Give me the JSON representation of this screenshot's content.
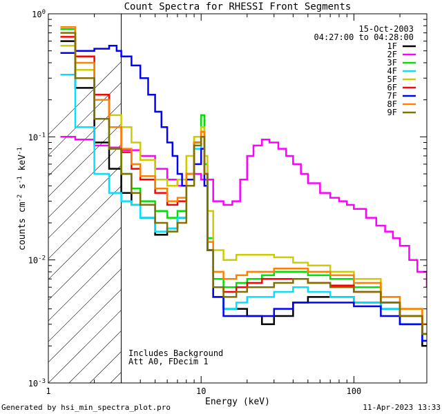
{
  "chart_data": {
    "type": "line",
    "title": "Count Spectra for RHESSI Front Segments",
    "xlabel": "Energy (keV)",
    "ylabel": "counts cm",
    "ylabel_sup1": "-2",
    "ylabel_mid": " s",
    "ylabel_sup2": "-1",
    "ylabel_tail": " keV",
    "ylabel_sup3": "-1",
    "xscale": "log",
    "yscale": "log",
    "xlim": [
      1,
      300
    ],
    "ylim": [
      0.001,
      1
    ],
    "x_ticks": [
      {
        "value": 1,
        "label": "1"
      },
      {
        "value": 10,
        "label": "10"
      },
      {
        "value": 100,
        "label": "100"
      }
    ],
    "y_ticks": [
      {
        "value": 1,
        "base": "10",
        "exp": "0"
      },
      {
        "value": 0.1,
        "base": "10",
        "exp": "-1"
      },
      {
        "value": 0.01,
        "base": "10",
        "exp": "-2"
      },
      {
        "value": 0.001,
        "base": "10",
        "exp": "-3"
      }
    ],
    "date": "15-Oct-2003",
    "time_range": "04:27:00 to 04:28:00",
    "annotations": [
      "Includes Background",
      "Att A0, FDecim 1"
    ],
    "hatched_region_xmax": 3,
    "legend_position": "top-right",
    "series": [
      {
        "name": "1F",
        "color": "#000000",
        "x": [
          1.2,
          1.5,
          2.0,
          2.5,
          3.0,
          3.5,
          4.0,
          5.0,
          6.0,
          7.0,
          8.0,
          9.0,
          10.0,
          10.5,
          11.0,
          12.0,
          14.0,
          17.0,
          20.0,
          25.0,
          30.0,
          40.0,
          50.0,
          70.0,
          100.0,
          150.0,
          200.0,
          280.0
        ],
        "y": [
          0.6,
          0.25,
          0.09,
          0.055,
          0.035,
          0.028,
          0.022,
          0.016,
          0.018,
          0.022,
          0.045,
          0.09,
          0.11,
          0.05,
          0.012,
          0.005,
          0.004,
          0.004,
          0.0035,
          0.003,
          0.0035,
          0.0045,
          0.005,
          0.005,
          0.0045,
          0.004,
          0.003,
          0.002
        ]
      },
      {
        "name": "2F",
        "color": "#ff00ff",
        "x": [
          1.2,
          1.5,
          2.0,
          2.5,
          3.0,
          4.0,
          5.0,
          6.0,
          7.0,
          8.0,
          9.0,
          10.0,
          12.0,
          14.0,
          16.0,
          18.0,
          20.0,
          22.0,
          25.0,
          28.0,
          32.0,
          36.0,
          40.0,
          45.0,
          50.0,
          60.0,
          70.0,
          80.0,
          90.0,
          100.0,
          120.0,
          140.0,
          160.0,
          180.0,
          200.0,
          230.0,
          260.0,
          300.0
        ],
        "y": [
          0.1,
          0.095,
          0.085,
          0.082,
          0.078,
          0.07,
          0.055,
          0.045,
          0.04,
          0.045,
          0.05,
          0.045,
          0.03,
          0.028,
          0.03,
          0.045,
          0.07,
          0.085,
          0.095,
          0.09,
          0.08,
          0.07,
          0.06,
          0.05,
          0.042,
          0.035,
          0.032,
          0.03,
          0.028,
          0.026,
          0.022,
          0.019,
          0.017,
          0.015,
          0.013,
          0.01,
          0.008,
          0.006
        ]
      },
      {
        "name": "3F",
        "color": "#00e000",
        "x": [
          1.2,
          1.5,
          2.0,
          2.5,
          3.0,
          3.5,
          4.0,
          5.0,
          6.0,
          7.0,
          8.0,
          9.0,
          10.0,
          10.5,
          11.0,
          12.0,
          14.0,
          17.0,
          20.0,
          25.0,
          30.0,
          40.0,
          50.0,
          70.0,
          100.0,
          150.0,
          200.0,
          280.0
        ],
        "y": [
          0.75,
          0.3,
          0.14,
          0.08,
          0.05,
          0.038,
          0.03,
          0.025,
          0.022,
          0.025,
          0.05,
          0.1,
          0.15,
          0.06,
          0.015,
          0.007,
          0.006,
          0.0065,
          0.007,
          0.0075,
          0.008,
          0.008,
          0.0075,
          0.007,
          0.006,
          0.0045,
          0.0035,
          0.0025
        ]
      },
      {
        "name": "4F",
        "color": "#00e0ff",
        "x": [
          1.2,
          1.5,
          2.0,
          2.5,
          3.0,
          3.5,
          4.0,
          5.0,
          6.0,
          7.0,
          8.0,
          9.0,
          10.0,
          10.5,
          11.0,
          12.0,
          14.0,
          17.0,
          20.0,
          25.0,
          30.0,
          40.0,
          50.0,
          70.0,
          100.0,
          150.0,
          200.0,
          280.0
        ],
        "y": [
          0.32,
          0.12,
          0.05,
          0.035,
          0.03,
          0.028,
          0.022,
          0.017,
          0.018,
          0.022,
          0.045,
          0.08,
          0.12,
          0.05,
          0.012,
          0.005,
          0.004,
          0.0045,
          0.005,
          0.005,
          0.0055,
          0.006,
          0.0055,
          0.005,
          0.0045,
          0.004,
          0.003,
          0.0022
        ]
      },
      {
        "name": "5F",
        "color": "#cccc00",
        "x": [
          1.2,
          1.5,
          2.0,
          2.5,
          3.0,
          3.5,
          4.0,
          5.0,
          6.0,
          7.0,
          8.0,
          9.0,
          10.0,
          10.5,
          11.0,
          12.0,
          14.0,
          17.0,
          20.0,
          25.0,
          30.0,
          40.0,
          50.0,
          70.0,
          100.0,
          150.0,
          200.0,
          280.0
        ],
        "y": [
          0.55,
          0.35,
          0.22,
          0.15,
          0.12,
          0.09,
          0.065,
          0.045,
          0.04,
          0.045,
          0.07,
          0.1,
          0.12,
          0.07,
          0.025,
          0.012,
          0.01,
          0.011,
          0.011,
          0.011,
          0.0105,
          0.0095,
          0.009,
          0.008,
          0.007,
          0.005,
          0.004,
          0.003
        ]
      },
      {
        "name": "6F",
        "color": "#ff0000",
        "x": [
          1.2,
          1.5,
          2.0,
          2.5,
          3.0,
          3.5,
          4.0,
          5.0,
          6.0,
          7.0,
          8.0,
          9.0,
          10.0,
          10.5,
          11.0,
          12.0,
          14.0,
          17.0,
          20.0,
          25.0,
          30.0,
          40.0,
          50.0,
          70.0,
          100.0,
          150.0,
          200.0,
          280.0
        ],
        "y": [
          0.65,
          0.45,
          0.22,
          0.12,
          0.075,
          0.055,
          0.045,
          0.035,
          0.028,
          0.03,
          0.05,
          0.09,
          0.1,
          0.05,
          0.012,
          0.006,
          0.0055,
          0.006,
          0.0065,
          0.007,
          0.007,
          0.007,
          0.0065,
          0.0062,
          0.0055,
          0.0045,
          0.0035,
          0.0025
        ]
      },
      {
        "name": "7F",
        "color": "#0000ff",
        "x": [
          1.2,
          1.5,
          2.0,
          2.5,
          2.8,
          3.0,
          3.5,
          4.0,
          4.5,
          5.0,
          5.5,
          6.0,
          6.5,
          7.0,
          7.5,
          8.0,
          9.0,
          10.0,
          10.5,
          11.0,
          12.0,
          14.0,
          17.0,
          20.0,
          25.0,
          30.0,
          40.0,
          50.0,
          70.0,
          100.0,
          150.0,
          200.0,
          280.0
        ],
        "y": [
          0.48,
          0.5,
          0.52,
          0.55,
          0.5,
          0.45,
          0.38,
          0.3,
          0.22,
          0.16,
          0.12,
          0.09,
          0.07,
          0.05,
          0.04,
          0.045,
          0.06,
          0.08,
          0.04,
          0.012,
          0.005,
          0.0035,
          0.0035,
          0.0035,
          0.0035,
          0.004,
          0.0045,
          0.0045,
          0.0045,
          0.0042,
          0.0035,
          0.003,
          0.0022
        ]
      },
      {
        "name": "8F",
        "color": "#ff8000",
        "x": [
          1.2,
          1.5,
          2.0,
          2.5,
          3.0,
          3.5,
          4.0,
          5.0,
          6.0,
          7.0,
          8.0,
          9.0,
          10.0,
          10.5,
          11.0,
          12.0,
          14.0,
          17.0,
          20.0,
          25.0,
          30.0,
          40.0,
          50.0,
          70.0,
          100.0,
          150.0,
          200.0,
          280.0
        ],
        "y": [
          0.78,
          0.4,
          0.2,
          0.12,
          0.08,
          0.06,
          0.048,
          0.038,
          0.03,
          0.032,
          0.05,
          0.09,
          0.11,
          0.05,
          0.014,
          0.008,
          0.007,
          0.0075,
          0.008,
          0.008,
          0.0085,
          0.0085,
          0.008,
          0.0075,
          0.0065,
          0.005,
          0.004,
          0.003
        ]
      },
      {
        "name": "9F",
        "color": "#807000",
        "x": [
          1.2,
          1.5,
          2.0,
          2.5,
          3.0,
          3.5,
          4.0,
          5.0,
          6.0,
          7.0,
          8.0,
          9.0,
          10.0,
          10.5,
          11.0,
          12.0,
          14.0,
          17.0,
          20.0,
          25.0,
          30.0,
          40.0,
          50.0,
          70.0,
          100.0,
          150.0,
          200.0,
          280.0
        ],
        "y": [
          0.7,
          0.3,
          0.14,
          0.08,
          0.05,
          0.035,
          0.028,
          0.02,
          0.017,
          0.02,
          0.04,
          0.085,
          0.1,
          0.05,
          0.012,
          0.006,
          0.005,
          0.0055,
          0.006,
          0.006,
          0.0065,
          0.007,
          0.0065,
          0.006,
          0.0055,
          0.0045,
          0.0035,
          0.0025
        ]
      }
    ]
  },
  "footer": {
    "left": "Generated by hsi_min_spectra_plot.pro",
    "right": "11-Apr-2023 13:33"
  }
}
